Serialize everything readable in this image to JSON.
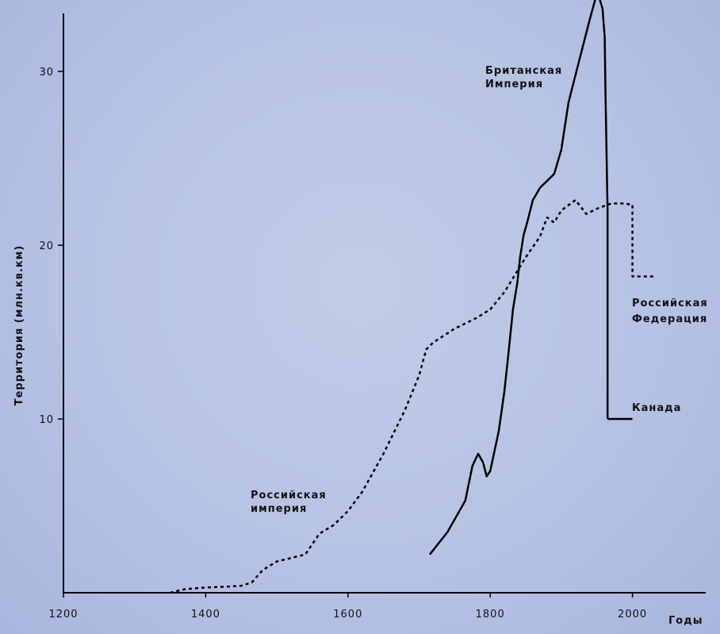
{
  "chart_data": {
    "type": "line",
    "xlabel": "Годы",
    "ylabel": "Территория (млн.кв.км)",
    "xlim": [
      1200,
      2050
    ],
    "ylim": [
      0,
      34.5
    ],
    "x_ticks": [
      1200,
      1400,
      1600,
      1800,
      2000
    ],
    "y_ticks": [
      10,
      20,
      30
    ],
    "grid": false,
    "series": [
      {
        "name": "Российская империя",
        "style": "dashed",
        "x": [
          1350,
          1370,
          1400,
          1430,
          1450,
          1465,
          1480,
          1500,
          1520,
          1540,
          1550,
          1560,
          1580,
          1600,
          1620,
          1650,
          1680,
          1700,
          1710,
          1720,
          1750,
          1780,
          1800,
          1820,
          1850,
          1870,
          1880,
          1890,
          1900,
          1920,
          1935,
          1950,
          1970,
          1990,
          2000
        ],
        "y": [
          0,
          0.2,
          0.3,
          0.35,
          0.4,
          0.6,
          1.3,
          1.8,
          2.0,
          2.2,
          2.8,
          3.4,
          3.9,
          4.7,
          5.8,
          8.0,
          10.5,
          12.5,
          14.0,
          14.4,
          15.2,
          15.8,
          16.3,
          17.3,
          19.3,
          20.5,
          21.6,
          21.3,
          22.0,
          22.6,
          21.8,
          22.1,
          22.4,
          22.4,
          22.3
        ]
      },
      {
        "name": "Российская Федерация",
        "style": "dashed",
        "x": [
          2000,
          2000,
          2030
        ],
        "y": [
          22.3,
          18.2,
          18.2
        ]
      },
      {
        "name": "Британская Империя",
        "style": "solid",
        "x": [
          1715,
          1740,
          1765,
          1775,
          1783,
          1790,
          1795,
          1800,
          1812,
          1820,
          1825,
          1832,
          1838,
          1842,
          1847,
          1852,
          1860,
          1870,
          1890,
          1900,
          1910,
          1920,
          1930,
          1940,
          1948,
          1953,
          1958,
          1960,
          1961,
          1962,
          1965,
          1965
        ],
        "y": [
          2.2,
          3.5,
          5.3,
          7.3,
          8.0,
          7.5,
          6.7,
          7.0,
          9.3,
          11.6,
          13.5,
          16.3,
          17.8,
          19.3,
          20.6,
          21.3,
          22.6,
          23.3,
          24.1,
          25.5,
          28.2,
          29.8,
          31.4,
          33.0,
          34.2,
          34.3,
          33.6,
          32.5,
          32.0,
          29.0,
          22.0,
          10.0
        ]
      },
      {
        "name": "Канада",
        "style": "solid",
        "x": [
          1965,
          2000
        ],
        "y": [
          10.0,
          10.0
        ]
      }
    ],
    "annotations": [
      {
        "text_lines": [
          "Британская",
          "Империя"
        ]
      },
      {
        "text_lines": [
          "Российская",
          "Федерация"
        ]
      },
      {
        "text_lines": [
          "Канада"
        ]
      },
      {
        "text_lines": [
          "Российская",
          "империя"
        ]
      }
    ]
  }
}
